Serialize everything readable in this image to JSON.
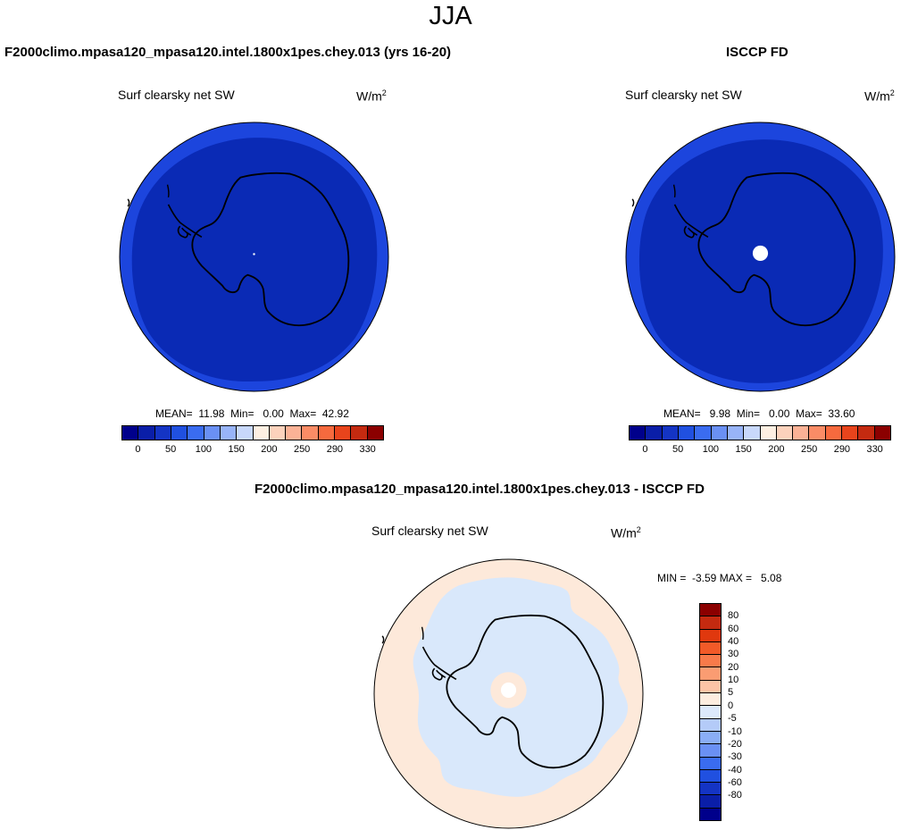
{
  "season": "JJA",
  "top_left": {
    "title": "F2000climo.mpasa120_mpasa120.intel.1800x1pes.chey.013 (yrs 16-20)",
    "variable": "Surf clearsky net SW",
    "units": "W/m",
    "units_exp": "2",
    "stats": "MEAN=  11.98  Min=   0.00  Max=  42.92"
  },
  "top_right": {
    "title": "ISCCP FD",
    "variable": "Surf clearsky net SW",
    "units": "W/m",
    "units_exp": "2",
    "stats": "MEAN=   9.98  Min=   0.00  Max=  33.60"
  },
  "bottom": {
    "title": "F2000climo.mpasa120_mpasa120.intel.1800x1pes.chey.013 - ISCCP FD",
    "variable": "Surf clearsky net SW",
    "units": "W/m",
    "units_exp": "2",
    "stats": "MIN =  -3.59 MAX =   5.08"
  },
  "colorbar_top": {
    "colors": [
      "#00008b",
      "#0a1ea8",
      "#1434c4",
      "#2050e0",
      "#3a6cf0",
      "#6a90f4",
      "#98b4f8",
      "#c8d8fb",
      "#fdefe2",
      "#fcd2bc",
      "#fbb296",
      "#fa8c66",
      "#f66a3e",
      "#e8441c",
      "#c42a10",
      "#8b0000"
    ],
    "labels": [
      "0",
      "50",
      "100",
      "150",
      "200",
      "250",
      "290",
      "330"
    ]
  },
  "colorbar_diff": {
    "colors": [
      "#8b0000",
      "#c42a10",
      "#e0380e",
      "#f25a28",
      "#f87a4a",
      "#fa9c72",
      "#fcc4a6",
      "#fdeddf",
      "#dde9fb",
      "#b4cbf8",
      "#8aadf5",
      "#6a90f4",
      "#3a6cf0",
      "#2050e0",
      "#1434c4",
      "#0a1ea8",
      "#00008b"
    ],
    "labels": [
      "80",
      "60",
      "40",
      "30",
      "20",
      "10",
      "5",
      "0",
      "-5",
      "-10",
      "-20",
      "-30",
      "-40",
      "-60",
      "-80"
    ]
  },
  "map_colors": {
    "model_outer": "#1c45dd",
    "model_inner": "#0a2ab5",
    "obs_outer": "#1c45dd",
    "obs_inner": "#0a2ab5",
    "diff_outer": "#fde9da",
    "diff_inner": "#d9e8fb"
  }
}
